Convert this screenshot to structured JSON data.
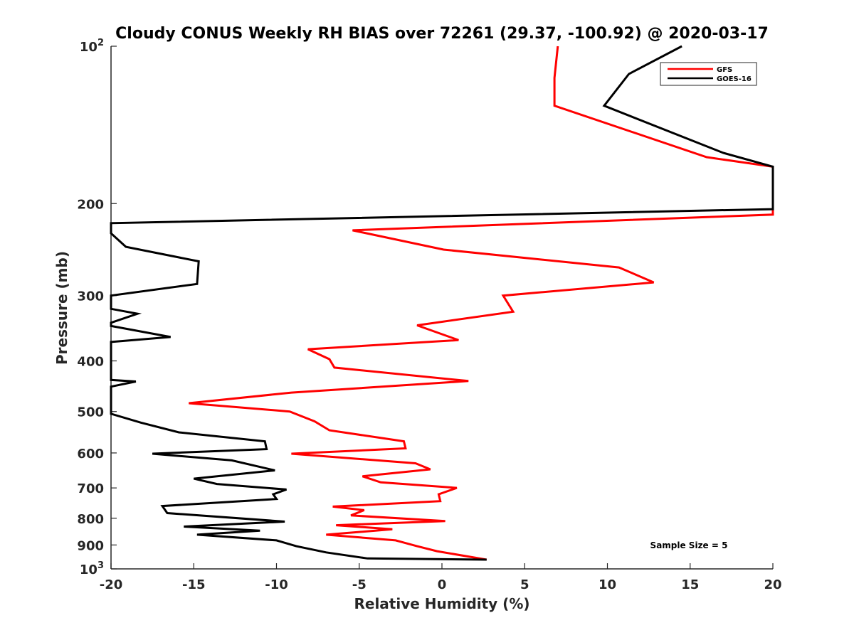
{
  "chart_data": {
    "type": "line",
    "title": "Cloudy CONUS Weekly RH BIAS over 72261 (29.37, -100.92) @ 2020-03-17",
    "xlabel": "Relative Humidity (%)",
    "ylabel": "Pressure (mb)",
    "xlim": [
      -20,
      20
    ],
    "ylim": [
      100,
      1000
    ],
    "y_scale": "log",
    "y_reversed": true,
    "grid": false,
    "x_ticks": [
      "-20",
      "-15",
      "-10",
      "-5",
      "0",
      "5",
      "10",
      "15",
      "20"
    ],
    "y_ticks": [
      {
        "value": 100,
        "label": "10",
        "sup": "2"
      },
      {
        "value": 200,
        "label": "200"
      },
      {
        "value": 300,
        "label": "300"
      },
      {
        "value": 400,
        "label": "400"
      },
      {
        "value": 500,
        "label": "500"
      },
      {
        "value": 600,
        "label": "600"
      },
      {
        "value": 700,
        "label": "700"
      },
      {
        "value": 800,
        "label": "800"
      },
      {
        "value": 900,
        "label": "900"
      },
      {
        "value": 1000,
        "label": "10",
        "sup": "3"
      }
    ],
    "legend_position": "top-right",
    "annotation": "Sample Size = 5",
    "series": [
      {
        "name": "GFS",
        "color": "#ff0000",
        "points": [
          [
            7.0,
            100
          ],
          [
            6.8,
            115
          ],
          [
            6.8,
            130
          ],
          [
            16.0,
            163
          ],
          [
            20.0,
            170
          ],
          [
            20.0,
            210
          ],
          [
            -5.4,
            225
          ],
          [
            0.1,
            245
          ],
          [
            10.7,
            265
          ],
          [
            12.8,
            283
          ],
          [
            3.7,
            300
          ],
          [
            4.3,
            322
          ],
          [
            -1.5,
            342
          ],
          [
            1.0,
            365
          ],
          [
            -8.1,
            380
          ],
          [
            -6.8,
            397
          ],
          [
            -6.5,
            412
          ],
          [
            1.6,
            437
          ],
          [
            -9.1,
            460
          ],
          [
            -15.3,
            482
          ],
          [
            -9.2,
            500
          ],
          [
            -7.7,
            522
          ],
          [
            -6.8,
            543
          ],
          [
            -2.3,
            570
          ],
          [
            -2.2,
            588
          ],
          [
            -9.1,
            602
          ],
          [
            -1.6,
            628
          ],
          [
            -0.7,
            645
          ],
          [
            -4.8,
            665
          ],
          [
            -3.7,
            683
          ],
          [
            0.9,
            700
          ],
          [
            -0.2,
            720
          ],
          [
            -0.1,
            742
          ],
          [
            -6.6,
            760
          ],
          [
            -4.7,
            772
          ],
          [
            -5.5,
            790
          ],
          [
            0.2,
            810
          ],
          [
            -6.4,
            825
          ],
          [
            -3.0,
            840
          ],
          [
            -7.0,
            860
          ],
          [
            -2.8,
            882
          ],
          [
            -1.5,
            905
          ],
          [
            -0.3,
            925
          ],
          [
            2.7,
            960
          ]
        ]
      },
      {
        "name": "GOES-16",
        "color": "#000000",
        "points": [
          [
            14.5,
            100
          ],
          [
            11.3,
            113
          ],
          [
            9.8,
            130
          ],
          [
            17.0,
            160
          ],
          [
            20.0,
            170
          ],
          [
            20.0,
            205
          ],
          [
            -20.0,
            218
          ],
          [
            -20.0,
            228
          ],
          [
            -19.1,
            242
          ],
          [
            -14.7,
            258
          ],
          [
            -14.8,
            285
          ],
          [
            -20.0,
            300
          ],
          [
            -20.0,
            318
          ],
          [
            -18.4,
            325
          ],
          [
            -20.0,
            338
          ],
          [
            -20.0,
            343
          ],
          [
            -16.4,
            360
          ],
          [
            -20.0,
            368
          ],
          [
            -20.0,
            435
          ],
          [
            -18.5,
            438
          ],
          [
            -20.0,
            448
          ],
          [
            -20.0,
            505
          ],
          [
            -18.2,
            525
          ],
          [
            -15.9,
            548
          ],
          [
            -10.7,
            570
          ],
          [
            -10.6,
            590
          ],
          [
            -17.5,
            602
          ],
          [
            -12.7,
            620
          ],
          [
            -10.1,
            648
          ],
          [
            -15.0,
            672
          ],
          [
            -13.6,
            688
          ],
          [
            -9.4,
            705
          ],
          [
            -10.2,
            720
          ],
          [
            -10.0,
            735
          ],
          [
            -16.9,
            758
          ],
          [
            -16.6,
            782
          ],
          [
            -9.5,
            812
          ],
          [
            -15.6,
            830
          ],
          [
            -11.0,
            845
          ],
          [
            -14.8,
            860
          ],
          [
            -10.0,
            882
          ],
          [
            -8.8,
            905
          ],
          [
            -7.0,
            930
          ],
          [
            -4.5,
            955
          ],
          [
            2.7,
            960
          ]
        ]
      }
    ]
  }
}
